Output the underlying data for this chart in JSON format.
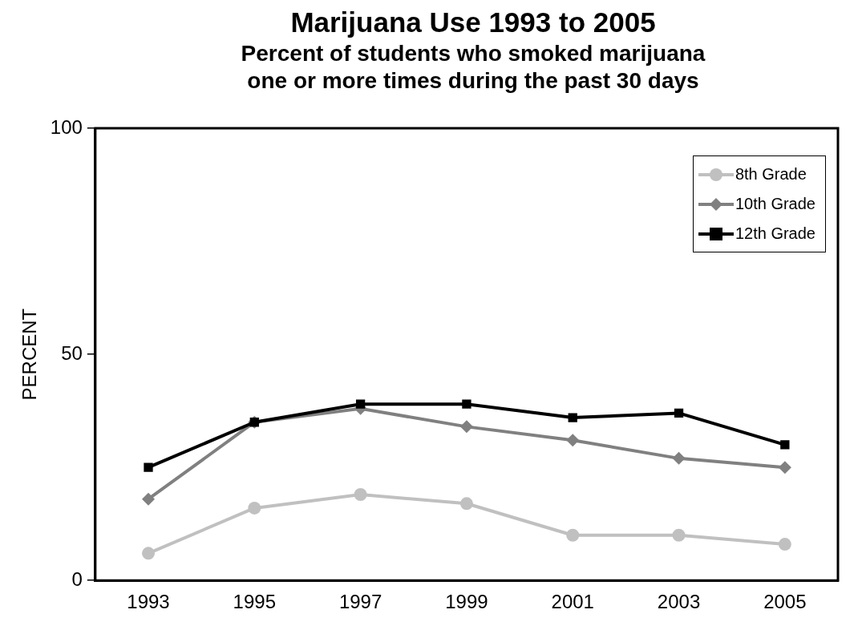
{
  "chart_data": {
    "type": "line",
    "title": "Marijuana Use 1993 to 2005",
    "subtitle": "Percent of students who smoked marijuana one or more times during the past 30 days",
    "ylabel": "PERCENT",
    "categories": [
      "1993",
      "1995",
      "1997",
      "1999",
      "2001",
      "2003",
      "2005"
    ],
    "series": [
      {
        "name": "8th Grade",
        "color": "#c0c0c0",
        "marker": "circle",
        "values": [
          6,
          16,
          19,
          17,
          10,
          10,
          8
        ]
      },
      {
        "name": "10th Grade",
        "color": "#808080",
        "marker": "diamond",
        "values": [
          18,
          35,
          38,
          34,
          31,
          27,
          25
        ]
      },
      {
        "name": "12th Grade",
        "color": "#000000",
        "marker": "square",
        "values": [
          25,
          35,
          39,
          39,
          36,
          37,
          30
        ]
      }
    ],
    "ylim": [
      0,
      100
    ],
    "yticks": [
      0,
      50,
      100
    ],
    "grid": false,
    "legend": "top right",
    "line_style": "solid"
  }
}
